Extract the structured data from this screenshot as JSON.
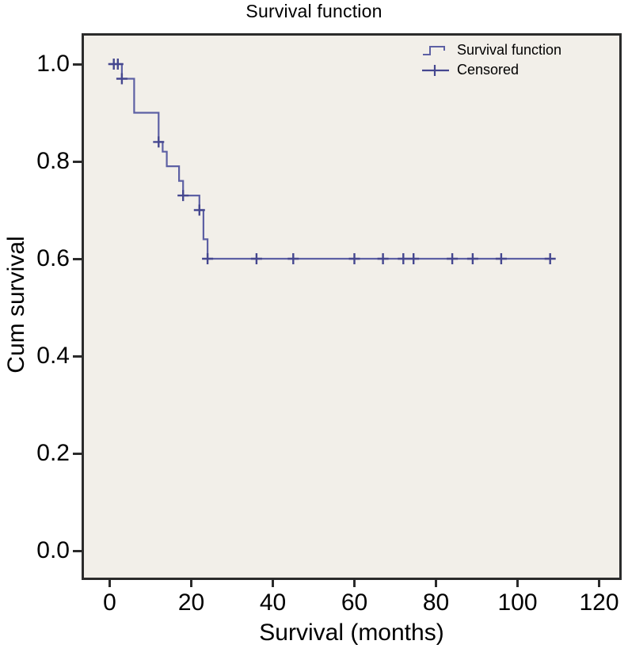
{
  "title": "Survival function",
  "chart_data": {
    "type": "line",
    "subtype": "kaplan-meier-step",
    "title": "Survival function",
    "xlabel": "Survival (months)",
    "ylabel": "Cum survival",
    "xlim": [
      0,
      120
    ],
    "ylim": [
      0.0,
      1.0
    ],
    "xticks": [
      0,
      20,
      40,
      60,
      80,
      100,
      120
    ],
    "yticks": [
      "0.0",
      "0.2",
      "0.4",
      "0.6",
      "0.8",
      "1.0"
    ],
    "grid": false,
    "plot_bg": "#f2efe9",
    "border_color": "#2b2b2b",
    "colors": {
      "line": "#5d60a4",
      "censor": "#45478f"
    },
    "legend": {
      "position": "top-right-inside"
    },
    "series": [
      {
        "name": "Survival function",
        "step_points": [
          [
            0,
            1.0
          ],
          [
            3,
            1.0
          ],
          [
            3,
            0.97
          ],
          [
            6,
            0.97
          ],
          [
            6,
            0.9
          ],
          [
            12,
            0.9
          ],
          [
            12,
            0.84
          ],
          [
            13,
            0.84
          ],
          [
            13,
            0.82
          ],
          [
            14,
            0.82
          ],
          [
            14,
            0.79
          ],
          [
            17,
            0.79
          ],
          [
            17,
            0.76
          ],
          [
            18,
            0.76
          ],
          [
            18,
            0.73
          ],
          [
            22,
            0.73
          ],
          [
            22,
            0.7
          ],
          [
            23,
            0.7
          ],
          [
            23,
            0.64
          ],
          [
            24,
            0.64
          ],
          [
            24,
            0.6
          ],
          [
            108,
            0.6
          ]
        ]
      }
    ],
    "censored": {
      "name": "Censored",
      "points": [
        [
          1,
          1.0
        ],
        [
          2,
          1.0
        ],
        [
          3,
          0.97
        ],
        [
          12,
          0.84
        ],
        [
          18,
          0.73
        ],
        [
          22,
          0.7
        ],
        [
          24,
          0.6
        ],
        [
          36,
          0.6
        ],
        [
          45,
          0.6
        ],
        [
          60,
          0.6
        ],
        [
          67,
          0.6
        ],
        [
          72,
          0.6
        ],
        [
          74.5,
          0.6
        ],
        [
          84,
          0.6
        ],
        [
          89,
          0.6
        ],
        [
          96,
          0.6
        ],
        [
          108,
          0.6
        ]
      ]
    }
  }
}
